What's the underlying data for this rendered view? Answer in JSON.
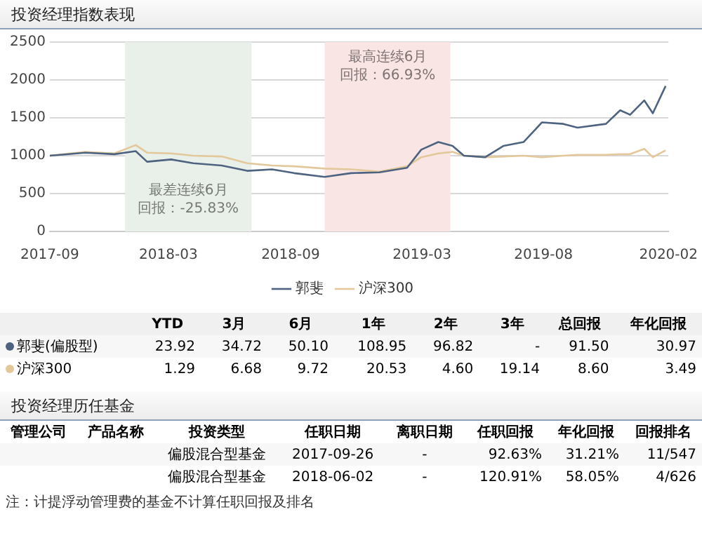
{
  "chart_data": {
    "type": "line",
    "title": "投资经理指数表现",
    "x": [
      "2017-09-26",
      "2017-11-15",
      "2017-12-26",
      "2018-01-25",
      "2018-02-10",
      "2018-03-16",
      "2018-04-16",
      "2018-05-26",
      "2018-07-01",
      "2018-08-05",
      "2018-09-05",
      "2018-10-18",
      "2018-11-24",
      "2019-01-03",
      "2019-02-11",
      "2019-03-03",
      "2019-03-27",
      "2019-04-16",
      "2019-05-02",
      "2019-06-01",
      "2019-06-27",
      "2019-07-25",
      "2019-08-20",
      "2019-09-19",
      "2019-10-09",
      "2019-11-18",
      "2019-12-08",
      "2019-12-22",
      "2020-01-11",
      "2020-01-23",
      "2020-02-10"
    ],
    "series": [
      {
        "name": "郭斐",
        "color": "#4d6380",
        "values": [
          1000,
          1040,
          1020,
          1060,
          920,
          950,
          900,
          870,
          800,
          820,
          770,
          720,
          770,
          780,
          840,
          1080,
          1180,
          1130,
          1000,
          980,
          1130,
          1180,
          1440,
          1420,
          1370,
          1420,
          1600,
          1540,
          1730,
          1560,
          1920
        ]
      },
      {
        "name": "沪深300",
        "color": "#e3c89b",
        "values": [
          1000,
          1050,
          1030,
          1140,
          1040,
          1030,
          1000,
          990,
          900,
          870,
          860,
          830,
          820,
          790,
          860,
          980,
          1030,
          1050,
          1000,
          980,
          990,
          1000,
          980,
          1000,
          1010,
          1010,
          1020,
          1020,
          1090,
          980,
          1070
        ]
      }
    ],
    "xlim": [
      "2017-09-26",
      "2020-02-14"
    ],
    "xticks": [
      {
        "value": "2017-09-26",
        "label": "2017-09"
      },
      {
        "value": "2018-03-12",
        "label": "2018-03"
      },
      {
        "value": "2018-08-31",
        "label": "2018-09"
      },
      {
        "value": "2019-03-04",
        "label": "2019-03"
      },
      {
        "value": "2019-08-22",
        "label": "2019-08"
      },
      {
        "value": "2020-02-14",
        "label": "2020-02"
      }
    ],
    "ylim": [
      0,
      2500
    ],
    "yticks": [
      0,
      500,
      1000,
      1500,
      2000,
      2500
    ],
    "grid": "y",
    "legend": "bottom",
    "marker": "none",
    "bands": [
      {
        "axis": "x",
        "from": "2018-01-10",
        "to": "2018-07-07",
        "label": "最差连续6月回报：-25.83%",
        "color": "#e9f0e9"
      },
      {
        "axis": "x",
        "from": "2018-10-18",
        "to": "2019-04-13",
        "label": "最高连续6月回报：66.93%",
        "color": "#f9e5e3"
      }
    ],
    "annotations": [
      "YTD",
      "3月",
      "6月",
      "1年",
      "2年",
      "3年",
      "总回报",
      "年化回报",
      "郭斐(偏股型)",
      "23.92",
      "34.72",
      "50.10",
      "108.95",
      "96.82",
      "-",
      "91.50",
      "30.97",
      "沪深300",
      "1.29",
      "6.68",
      "9.72",
      "20.53",
      "4.60",
      "19.14",
      "8.60",
      "3.49",
      "投资经理历任基金",
      "管理公司",
      "产品名称",
      "投资类型",
      "任职日期",
      "离职日期",
      "任职回报",
      "年化回报",
      "回报排名",
      "偏股混合型基金",
      "2017-09-26",
      "-",
      "92.63%",
      "31.21%",
      "11/547",
      "偏股混合型基金",
      "2018-06-02",
      "-",
      "120.91%",
      "58.05%",
      "4/626",
      "注：计提浮动管理费的基金不计算任职回报及排名"
    ]
  }
}
